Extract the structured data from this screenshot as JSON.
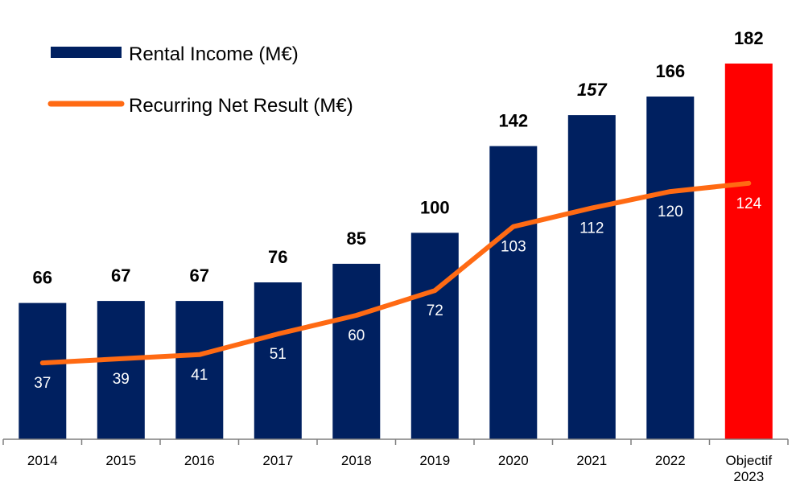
{
  "chart_data": {
    "type": "bar",
    "categories": [
      "2014",
      "2015",
      "2016",
      "2017",
      "2018",
      "2019",
      "2020",
      "2021",
      "2022",
      "Objectif\n2023"
    ],
    "series": [
      {
        "name": "Rental Income (M€)",
        "type": "bar",
        "values": [
          66,
          67,
          67,
          76,
          85,
          100,
          142,
          157,
          166,
          182
        ],
        "labels": [
          "66",
          "67",
          "67",
          "76",
          "85",
          "100",
          "142",
          "157",
          "166",
          "182"
        ]
      },
      {
        "name": "Recurring Net Result (M€)",
        "type": "line",
        "values": [
          37,
          39,
          41,
          51,
          60,
          72,
          103,
          112,
          120,
          124
        ],
        "labels": [
          "37",
          "39",
          "41",
          "51",
          "60",
          "72",
          "103",
          "112",
          "120",
          "124"
        ]
      }
    ],
    "ylim": [
      0,
      200
    ],
    "grid": false,
    "legend_position": "top-left",
    "italic_label_indices": [
      7
    ],
    "colors": {
      "bar": "#002060",
      "highlight_bar": "#ff0000",
      "line": "#ff6a13",
      "axis": "#7f7f7f"
    },
    "highlight_index": 9
  }
}
